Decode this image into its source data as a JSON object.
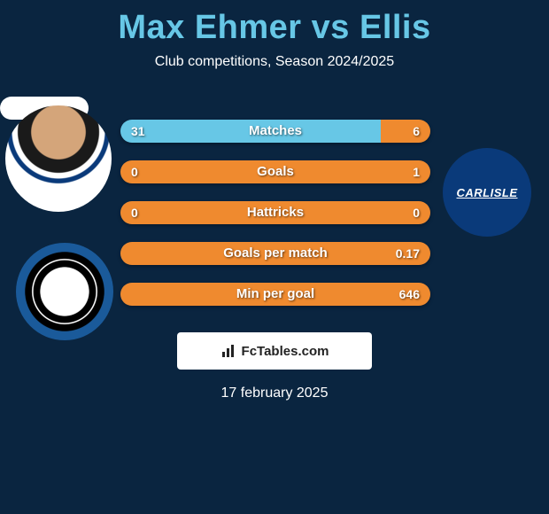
{
  "title": "Max Ehmer vs Ellis",
  "subtitle": "Club competitions, Season 2024/2025",
  "date": "17 february 2025",
  "footer_label": "FcTables.com",
  "colors": {
    "background": "#0a2540",
    "title": "#67c7e6",
    "text": "#ffffff",
    "player1": "#67c7e6",
    "player2": "#ef8a2f"
  },
  "club2_label": "CARLISLE",
  "bars": [
    {
      "label": "Matches",
      "left_val": "31",
      "right_val": "6",
      "left_pct": 84,
      "right_pct": 16
    },
    {
      "label": "Goals",
      "left_val": "0",
      "right_val": "1",
      "left_pct": 0,
      "right_pct": 100
    },
    {
      "label": "Hattricks",
      "left_val": "0",
      "right_val": "0",
      "left_pct": 0,
      "right_pct": 100
    },
    {
      "label": "Goals per match",
      "left_val": "",
      "right_val": "0.17",
      "left_pct": 0,
      "right_pct": 100
    },
    {
      "label": "Min per goal",
      "left_val": "",
      "right_val": "646",
      "left_pct": 0,
      "right_pct": 100
    }
  ]
}
